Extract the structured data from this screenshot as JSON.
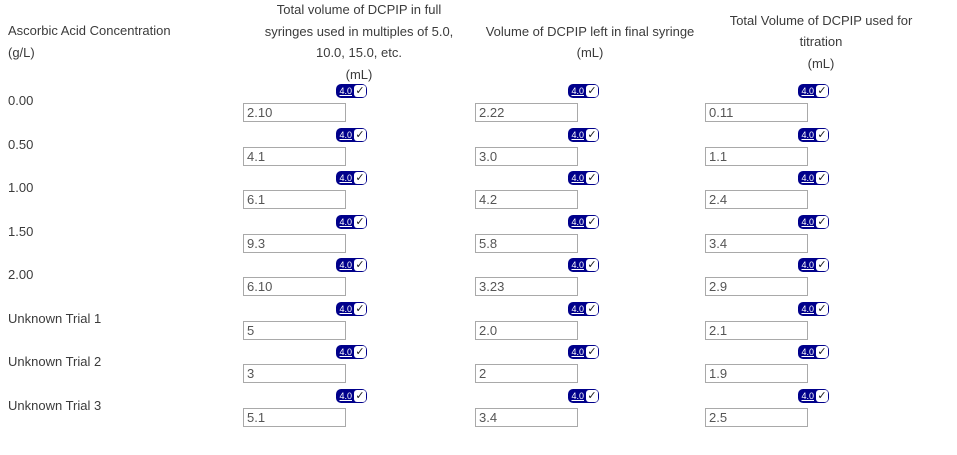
{
  "table": {
    "row_header": {
      "lines": [
        "Ascorbic Acid Concentration",
        "(g/L)"
      ]
    },
    "columns": [
      {
        "header_lines": [
          "Total volume of DCPIP in full",
          "syringes used in multiples of 5.0,",
          "10.0, 15.0, etc.",
          "(mL)"
        ]
      },
      {
        "header_lines": [
          "Volume of DCPIP left in final syringe",
          "(mL)"
        ]
      },
      {
        "header_lines": [
          "Total Volume of DCPIP used for",
          "titration",
          "(mL)"
        ]
      }
    ],
    "score_badge": {
      "score": "4.0",
      "checkmark": "✓",
      "checked": true
    },
    "rows": [
      {
        "label": "0.00",
        "values": [
          "2.10",
          "2.22",
          "0.11"
        ]
      },
      {
        "label": "0.50",
        "values": [
          "4.1",
          "3.0",
          "1.1"
        ]
      },
      {
        "label": "1.00",
        "values": [
          "6.1",
          "4.2",
          "2.4"
        ]
      },
      {
        "label": "1.50",
        "values": [
          "9.3",
          "5.8",
          "3.4"
        ]
      },
      {
        "label": "2.00",
        "values": [
          "6.10",
          "3.23",
          "2.9"
        ]
      },
      {
        "label": "Unknown Trial 1",
        "values": [
          "5",
          "2.0",
          "2.1"
        ]
      },
      {
        "label": "Unknown Trial 2",
        "values": [
          "3",
          "2",
          "1.9"
        ]
      },
      {
        "label": "Unknown Trial 3",
        "values": [
          "5.1",
          "3.4",
          "2.5"
        ]
      }
    ]
  },
  "colors": {
    "badge_background": "#00008B",
    "badge_text": "#ffffff",
    "input_border": "#a9a9a9",
    "input_text": "#555555",
    "label_text": "#3b3b3b",
    "page_background": "#ffffff"
  }
}
